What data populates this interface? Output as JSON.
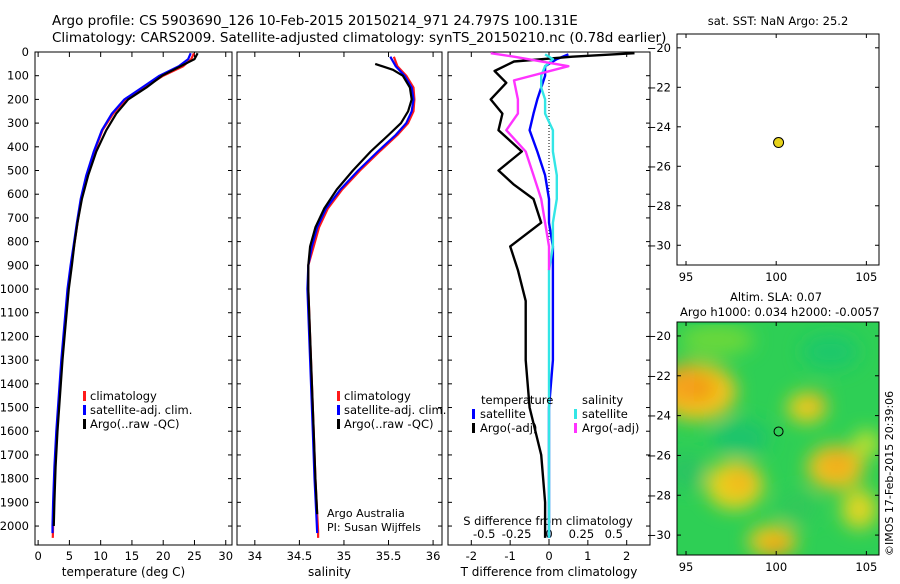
{
  "header": {
    "line1": "Argo profile: CS 5903690_126 10-Feb-2015 20150214_971 24.797S 100.131E",
    "line2": "Climatology: CARS2009. Satellite-adjusted climatology: synTS_20150210.nc (0.78d earlier)"
  },
  "credit": "©IMOS 17-Feb-2015 20:39:06",
  "colors": {
    "climatology": "#ff1a1a",
    "satellite": "#0000ff",
    "argo": "#000000",
    "sal_satellite": "#33e6e6",
    "sal_argo": "#ff33ff",
    "float_marker": "#e6d21a"
  },
  "chart_data": [
    {
      "type": "line",
      "name": "temperature-profile",
      "xlabel": "temperature (deg C)",
      "ylabel": "",
      "xlim": [
        -0.5,
        31
      ],
      "ylim": [
        2080,
        0
      ],
      "xticks": [
        0,
        5,
        10,
        15,
        20,
        25,
        30
      ],
      "yticks": [
        0,
        100,
        200,
        300,
        400,
        500,
        600,
        700,
        800,
        900,
        1000,
        1100,
        1200,
        1300,
        1400,
        1500,
        1600,
        1700,
        1800,
        1900,
        2000
      ],
      "legend": [
        "climatology",
        "satellite-adj. clim.",
        "Argo(..raw -QC)"
      ],
      "series": [
        {
          "name": "climatology",
          "color": "#ff1a1a",
          "x": [
            24.9,
            24.5,
            23.2,
            20.0,
            17.0,
            14.0,
            12.0,
            10.3,
            9.0,
            7.8,
            6.9,
            6.3,
            5.8,
            5.3,
            4.8,
            4.3,
            3.8,
            3.4,
            3.0,
            2.7,
            2.5,
            2.4,
            2.35
          ],
          "y": [
            5,
            30,
            60,
            100,
            150,
            200,
            260,
            330,
            420,
            520,
            620,
            720,
            810,
            900,
            1000,
            1150,
            1300,
            1450,
            1600,
            1750,
            1900,
            2000,
            2050
          ]
        },
        {
          "name": "satellite-adj. clim.",
          "color": "#0000ff",
          "x": [
            24.4,
            24.0,
            22.5,
            19.4,
            16.6,
            13.8,
            11.8,
            10.2,
            8.9,
            7.7,
            6.8,
            6.2,
            5.7,
            5.2,
            4.7,
            4.2,
            3.7,
            3.3,
            2.9,
            2.6,
            2.4,
            2.3,
            2.3
          ],
          "y": [
            5,
            30,
            60,
            100,
            150,
            200,
            260,
            330,
            420,
            520,
            620,
            720,
            810,
            900,
            1000,
            1150,
            1300,
            1450,
            1600,
            1750,
            1900,
            2000,
            2030
          ]
        },
        {
          "name": "Argo(..raw -QC)",
          "color": "#000000",
          "x": [
            25.5,
            25.0,
            22.8,
            19.8,
            17.3,
            14.4,
            12.5,
            10.9,
            9.3,
            8.0,
            7.0,
            6.3,
            5.8,
            5.4,
            4.9,
            4.4,
            3.9,
            3.5,
            3.1,
            2.8,
            2.6,
            2.5
          ],
          "y": [
            5,
            30,
            60,
            100,
            150,
            200,
            260,
            330,
            420,
            520,
            620,
            720,
            810,
            900,
            1000,
            1150,
            1300,
            1450,
            1600,
            1750,
            1900,
            2000
          ]
        }
      ]
    },
    {
      "type": "line",
      "name": "salinity-profile",
      "xlabel": "salinity",
      "xlim": [
        33.8,
        36.1
      ],
      "ylim": [
        2080,
        0
      ],
      "xticks": [
        34,
        34.5,
        35,
        35.5,
        36
      ],
      "xticklabels": [
        "34",
        "34.5",
        "35",
        "35.5",
        "36"
      ],
      "legend": [
        "climatology",
        "satellite-adj. clim.",
        "Argo(..raw -QC)"
      ],
      "annotation": [
        "Argo Australia",
        "PI: Susan Wijffels"
      ],
      "series": [
        {
          "name": "climatology",
          "color": "#ff1a1a",
          "x": [
            35.56,
            35.6,
            35.7,
            35.78,
            35.79,
            35.78,
            35.72,
            35.6,
            35.4,
            35.18,
            34.98,
            34.82,
            34.72,
            34.66,
            34.6,
            34.6,
            34.62,
            34.64,
            34.66,
            34.68,
            34.7,
            34.71,
            34.71
          ],
          "y": [
            20,
            60,
            100,
            150,
            200,
            250,
            300,
            350,
            420,
            500,
            580,
            660,
            740,
            820,
            900,
            1000,
            1200,
            1400,
            1600,
            1800,
            1950,
            2020,
            2050
          ]
        },
        {
          "name": "satellite-adj. clim.",
          "color": "#0000ff",
          "x": [
            35.52,
            35.58,
            35.68,
            35.76,
            35.78,
            35.76,
            35.7,
            35.58,
            35.38,
            35.16,
            34.96,
            34.8,
            34.7,
            34.64,
            34.6,
            34.59,
            34.61,
            34.63,
            34.65,
            34.67,
            34.69,
            34.7
          ],
          "y": [
            20,
            60,
            100,
            150,
            200,
            250,
            300,
            350,
            420,
            500,
            580,
            660,
            740,
            820,
            900,
            1000,
            1200,
            1400,
            1600,
            1800,
            1950,
            2030
          ]
        },
        {
          "name": "Argo(..raw -QC)",
          "color": "#000000",
          "x": [
            35.35,
            35.55,
            35.66,
            35.74,
            35.76,
            35.72,
            35.64,
            35.5,
            35.3,
            35.1,
            34.92,
            34.78,
            34.68,
            34.62,
            34.6,
            34.6,
            34.62,
            34.64,
            34.66,
            34.68,
            34.7
          ],
          "y": [
            50,
            75,
            100,
            150,
            200,
            250,
            300,
            350,
            420,
            500,
            580,
            660,
            740,
            820,
            900,
            1000,
            1200,
            1400,
            1600,
            1800,
            1950
          ]
        }
      ]
    },
    {
      "type": "line",
      "name": "difference-profile",
      "xlabel": "T difference from climatology",
      "top_xlabel": "S difference from climatology",
      "xlim": [
        -2.6,
        2.6
      ],
      "xticks": [
        -2,
        -1,
        0,
        1,
        2
      ],
      "top_xticks": [
        -0.5,
        -0.25,
        0,
        0.25,
        0.5
      ],
      "top_xticklabels": [
        "-0.5",
        "-0.25",
        "0",
        "0.25",
        "0.5"
      ],
      "legend_temperature": {
        "title": "temperature",
        "items": [
          "satellite",
          "Argo(-adj)"
        ]
      },
      "legend_salinity": {
        "title": "salinity",
        "items": [
          "satellite",
          "Argo(-adj)"
        ]
      },
      "series": [
        {
          "name": "temperature satellite",
          "color": "#0000ff",
          "x": [
            0.5,
            0.2,
            -0.1,
            -0.1,
            -0.2,
            -0.3,
            -0.4,
            -0.5,
            -0.3,
            -0.1,
            0.0,
            0.0,
            0.1,
            0.1,
            0.1,
            0.1,
            0.0,
            0.0,
            0.0,
            0.0
          ],
          "y": [
            10,
            30,
            60,
            100,
            150,
            200,
            260,
            330,
            420,
            520,
            620,
            720,
            820,
            920,
            1100,
            1300,
            1500,
            1700,
            1900,
            2050
          ]
        },
        {
          "name": "temperature Argo(-adj)",
          "color": "#000000",
          "x": [
            2.2,
            0.6,
            -0.9,
            -1.4,
            -1.1,
            -1.5,
            -1.2,
            -1.3,
            -0.7,
            -1.3,
            -0.9,
            -0.4,
            -0.2,
            -1.0,
            -0.8,
            -0.6,
            -0.6,
            -0.5,
            -0.2,
            -0.1,
            -0.1
          ],
          "y": [
            5,
            20,
            40,
            80,
            130,
            200,
            260,
            330,
            420,
            500,
            560,
            620,
            720,
            820,
            920,
            1050,
            1300,
            1500,
            1700,
            1900,
            2050
          ]
        },
        {
          "name": "salinity satellite",
          "color": "#33e6e6",
          "x": [
            -0.1,
            0.1,
            -0.1,
            -0.2,
            -0.2,
            -0.1,
            -0.1,
            0.1,
            0.1,
            0.2,
            0.2,
            0.1,
            0.1,
            0.0,
            0.0,
            0.0,
            0.0,
            0.0,
            0.0,
            0.0
          ],
          "y": [
            10,
            30,
            60,
            100,
            150,
            200,
            260,
            330,
            420,
            520,
            620,
            720,
            820,
            920,
            1100,
            1300,
            1500,
            1700,
            1900,
            2050
          ]
        },
        {
          "name": "salinity Argo(-adj)",
          "color": "#ff33ff",
          "x": [
            -1.5,
            -0.9,
            0.5,
            -0.9,
            -0.8,
            -0.8,
            -1.1,
            -0.6,
            -0.4,
            -0.2,
            -0.1,
            0.0,
            0.0
          ],
          "y": [
            5,
            20,
            60,
            120,
            200,
            260,
            330,
            420,
            520,
            620,
            720,
            820,
            920
          ]
        }
      ]
    },
    {
      "type": "scatter",
      "name": "sst-map",
      "title": "sat. SST: NaN Argo: 25.2",
      "xlim": [
        94.5,
        105.7
      ],
      "ylim": [
        -31,
        -19.3
      ],
      "xticks": [
        95,
        100,
        105
      ],
      "yticks": [
        -20,
        -22,
        -24,
        -26,
        -28,
        -30
      ],
      "points": [
        {
          "x": 100.131,
          "y": -24.797
        }
      ]
    },
    {
      "type": "heatmap",
      "name": "sla-map",
      "title": "Altim. SLA: 0.07",
      "subtitle": "Argo h1000: 0.034 h2000: -0.0057",
      "xlim": [
        94.5,
        105.7
      ],
      "ylim": [
        -31,
        -19.3
      ],
      "xticks": [
        95,
        100,
        105
      ],
      "yticks": [
        -20,
        -22,
        -24,
        -26,
        -28,
        -30
      ],
      "points": [
        {
          "x": 100.131,
          "y": -24.797
        }
      ]
    }
  ]
}
